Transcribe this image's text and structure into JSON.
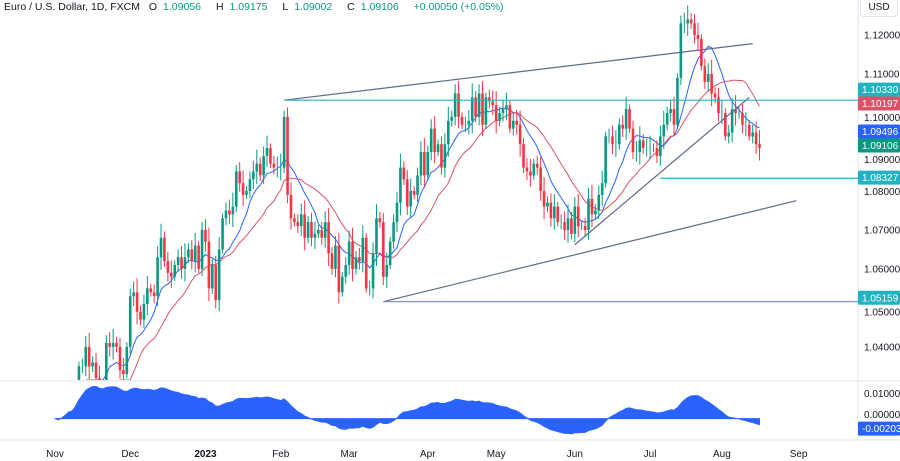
{
  "header": {
    "symbol": "Euro / U.S. Dollar, 1D, FXCM",
    "open_label": "O",
    "open": "1.09056",
    "high_label": "H",
    "high": "1.09175",
    "low_label": "L",
    "low": "1.09002",
    "close_label": "C",
    "close": "1.09106",
    "change": "+0.00050 (+0.05%)"
  },
  "currency_button": "USD",
  "colors": {
    "up": "#089981",
    "down": "#f23645",
    "ma_fast": "#2962ff",
    "ma_slow": "#d9546a",
    "trendline": "#5b6b8c",
    "level": "#22b3c3",
    "oscillator": "#2962ff"
  },
  "chart_data": {
    "type": "candlestick",
    "closes_by_month": [
      {
        "month": "Nov",
        "values": [
          0.988,
          0.982,
          0.996,
          1.002,
          1.007,
          1.001,
          1.02,
          1.035,
          1.035,
          1.04,
          1.035,
          1.036,
          1.032,
          1.025,
          1.03,
          1.041,
          1.04,
          1.041,
          1.04,
          1.034,
          1.033,
          1.04
        ]
      },
      {
        "month": "Dec",
        "values": [
          1.053,
          1.054,
          1.049,
          1.047,
          1.051,
          1.055,
          1.054,
          1.053,
          1.063,
          1.068,
          1.062,
          1.059,
          1.058,
          1.061,
          1.063,
          1.06,
          1.063,
          1.065,
          1.062,
          1.066,
          1.06,
          1.07
        ]
      },
      {
        "month": "2023",
        "values": [
          1.067,
          1.055,
          1.061,
          1.052,
          1.065,
          1.073,
          1.075,
          1.074,
          1.076,
          1.085,
          1.082,
          1.079,
          1.08,
          1.083,
          1.085,
          1.087,
          1.084,
          1.089,
          1.091,
          1.087,
          1.086,
          1.086
        ]
      },
      {
        "month": "Feb",
        "values": [
          1.086,
          1.099,
          1.079,
          1.073,
          1.072,
          1.071,
          1.074,
          1.068,
          1.072,
          1.068,
          1.069,
          1.07,
          1.068,
          1.072,
          1.064,
          1.06,
          1.066,
          1.054,
          1.058,
          1.061
        ]
      },
      {
        "month": "Mar",
        "values": [
          1.067,
          1.06,
          1.063,
          1.062,
          1.068,
          1.055,
          1.055,
          1.064,
          1.073,
          1.072,
          1.058,
          1.061,
          1.067,
          1.072,
          1.077,
          1.086,
          1.083,
          1.076,
          1.08,
          1.079,
          1.084,
          1.09,
          1.084
        ]
      },
      {
        "month": "Apr",
        "values": [
          1.09,
          1.096,
          1.09,
          1.092,
          1.086,
          1.092,
          1.098,
          1.099,
          1.105,
          1.099,
          1.097,
          1.097,
          1.098,
          1.104,
          1.099,
          1.105,
          1.097,
          1.104,
          1.103,
          1.102
        ]
      },
      {
        "month": "May",
        "values": [
          1.098,
          1.1,
          1.101,
          1.102,
          1.096,
          1.098,
          1.097,
          1.092,
          1.086,
          1.085,
          1.084,
          1.087,
          1.086,
          1.08,
          1.076,
          1.077,
          1.073,
          1.076,
          1.072,
          1.072,
          1.07,
          1.073,
          1.069
        ]
      },
      {
        "month": "Jun",
        "values": [
          1.076,
          1.071,
          1.071,
          1.07,
          1.078,
          1.074,
          1.075,
          1.079,
          1.082,
          1.094,
          1.094,
          1.092,
          1.092,
          1.097,
          1.096,
          1.101,
          1.096,
          1.09,
          1.09,
          1.093,
          1.091,
          1.091
        ]
      },
      {
        "month": "Jul",
        "values": [
          1.091,
          1.091,
          1.089,
          1.094,
          1.097,
          1.1,
          1.101,
          1.097,
          1.109,
          1.123,
          1.123,
          1.124,
          1.123,
          1.12,
          1.119,
          1.112,
          1.108,
          1.11,
          1.105,
          1.104,
          1.1
        ]
      },
      {
        "month": "Aug",
        "values": [
          1.1,
          1.094,
          1.095,
          1.101,
          1.1,
          1.1,
          1.097,
          1.097,
          1.094,
          1.095,
          1.092,
          1.09106
        ]
      }
    ],
    "extra_time_ticks": [
      "Sep"
    ],
    "price_ticks": [
      "1.12000",
      "1.11000",
      "1.10000",
      "1.09000",
      "1.08000",
      "1.07000",
      "1.06000",
      "1.05000",
      "1.04000"
    ],
    "price_range": [
      1.0315,
      1.129
    ],
    "oscillator_ticks": [
      "0.01000",
      "0.00000"
    ],
    "oscillator_range": [
      -0.0085,
      0.0145
    ],
    "trendlines": [
      {
        "from": [
          "2023-02-02",
          1.1033
        ],
        "to": [
          "2023-08-14",
          1.1178
        ]
      },
      {
        "from": [
          "2023-03-15",
          1.0516
        ],
        "to": [
          "2023-08-31",
          1.0775
        ]
      },
      {
        "from": [
          "2023-06-01",
          1.0662
        ],
        "to": [
          "2023-08-11",
          1.104
        ]
      }
    ],
    "levels": [
      {
        "from": "2023-02-02",
        "price": 1.1033,
        "label": "1.10330"
      },
      {
        "from": "2023-07-06",
        "price": 1.08327,
        "label": "1.08327"
      },
      {
        "from": "2023-03-15",
        "price": 1.05159,
        "label": "1.05159"
      }
    ],
    "moving_averages": [
      {
        "period": 10,
        "color_key": "ma_fast",
        "last_label": "1.09496"
      },
      {
        "period": 20,
        "color_key": "ma_slow",
        "last_label": "1.10197"
      }
    ],
    "last_price_label": "1.09106",
    "oscillator_last_label": "-0.00203"
  }
}
